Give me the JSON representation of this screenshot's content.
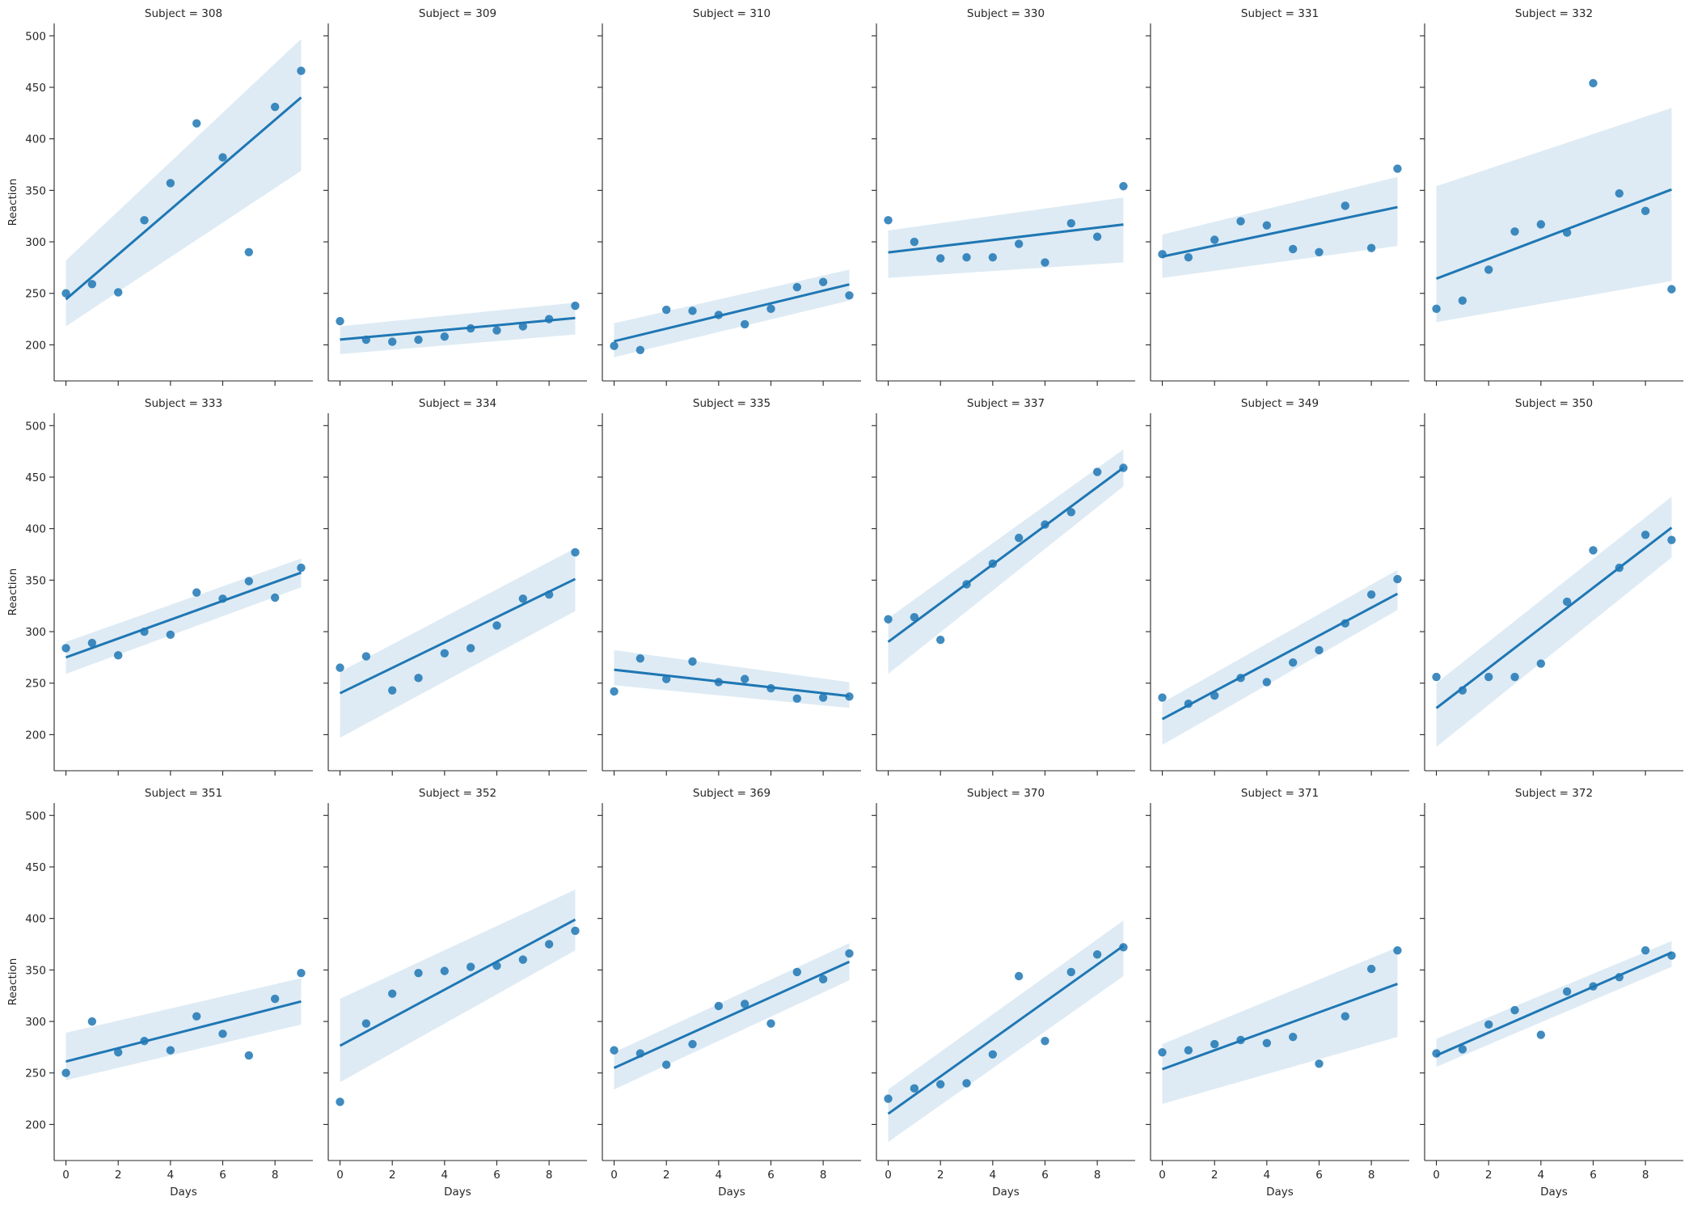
{
  "chart_data": {
    "type": "scatter",
    "facet_title_prefix": "Subject = ",
    "xlabel": "Days",
    "ylabel": "Reaction",
    "xlim": [
      -0.45,
      9.45
    ],
    "ylim": [
      165,
      512
    ],
    "xticks": [
      0,
      2,
      4,
      6,
      8
    ],
    "yticks": [
      200,
      250,
      300,
      350,
      400,
      450,
      500
    ],
    "grid": false,
    "legend": "none",
    "colors": {
      "points": "#1f77b4",
      "line": "#1f77b4",
      "band": "#1f77b4"
    },
    "x": [
      0,
      1,
      2,
      3,
      4,
      5,
      6,
      7,
      8,
      9
    ],
    "panels": [
      {
        "subject": "308",
        "y": [
          250,
          259,
          251,
          321,
          357,
          415,
          382,
          290,
          431,
          466
        ],
        "fit": [
          244.2,
          440.2
        ],
        "ci": [
          [
            218,
            282
          ],
          [
            369,
            497
          ]
        ]
      },
      {
        "subject": "309",
        "y": [
          223,
          205,
          203,
          205,
          208,
          216,
          214,
          218,
          225,
          238
        ],
        "fit": [
          205.1,
          226.0
        ],
        "ci": [
          [
            191,
            218
          ],
          [
            210,
            241
          ]
        ]
      },
      {
        "subject": "310",
        "y": [
          199,
          195,
          234,
          233,
          229,
          220,
          235,
          256,
          261,
          248
        ],
        "fit": [
          203.5,
          258.7
        ],
        "ci": [
          [
            188,
            221
          ],
          [
            243,
            273
          ]
        ]
      },
      {
        "subject": "330",
        "y": [
          321,
          300,
          284,
          285,
          285,
          298,
          280,
          318,
          305,
          354
        ],
        "fit": [
          289.7,
          316.8
        ],
        "ci": [
          [
            265,
            311
          ],
          [
            280,
            343
          ]
        ]
      },
      {
        "subject": "331",
        "y": [
          288,
          285,
          302,
          320,
          316,
          293,
          290,
          335,
          294,
          371
        ],
        "fit": [
          285.7,
          333.7
        ],
        "ci": [
          [
            265,
            307
          ],
          [
            296,
            363
          ]
        ]
      },
      {
        "subject": "332",
        "y": [
          235,
          243,
          273,
          310,
          317,
          309,
          454,
          347,
          330,
          254
        ],
        "fit": [
          264.3,
          350.8
        ],
        "ci": [
          [
            222,
            354
          ],
          [
            262,
            430
          ]
        ]
      },
      {
        "subject": "333",
        "y": [
          284,
          289,
          277,
          300,
          297,
          338,
          332,
          349,
          333,
          362
        ],
        "fit": [
          275.0,
          357.3
        ],
        "ci": [
          [
            259,
            290
          ],
          [
            343,
            371
          ]
        ]
      },
      {
        "subject": "334",
        "y": [
          265,
          276,
          243,
          255,
          279,
          284,
          306,
          332,
          336,
          377
        ],
        "fit": [
          240.2,
          351.1
        ],
        "ci": [
          [
            197,
            261
          ],
          [
            320,
            381
          ]
        ]
      },
      {
        "subject": "335",
        "y": [
          242,
          274,
          254,
          271,
          251,
          254,
          245,
          235,
          236,
          237
        ],
        "fit": [
          263.0,
          237.4
        ],
        "ci": [
          [
            248,
            282
          ],
          [
            226,
            251
          ]
        ]
      },
      {
        "subject": "337",
        "y": [
          312,
          314,
          292,
          346,
          366,
          391,
          404,
          416,
          455,
          459
        ],
        "fit": [
          290.1,
          459.1
        ],
        "ci": [
          [
            259,
            313
          ],
          [
            441,
            477
          ]
        ]
      },
      {
        "subject": "349",
        "y": [
          236,
          230,
          238,
          255,
          251,
          270,
          282,
          308,
          336,
          351
        ],
        "fit": [
          215.1,
          336.8
        ],
        "ci": [
          [
            190,
            231
          ],
          [
            321,
            360
          ]
        ]
      },
      {
        "subject": "350",
        "y": [
          256,
          243,
          256,
          256,
          269,
          329,
          379,
          362,
          394,
          389
        ],
        "fit": [
          225.8,
          401.0
        ],
        "ci": [
          [
            188,
            250
          ],
          [
            372,
            431
          ]
        ]
      },
      {
        "subject": "351",
        "y": [
          250,
          300,
          270,
          281,
          272,
          305,
          288,
          267,
          322,
          347
        ],
        "fit": [
          261.1,
          319.4
        ],
        "ci": [
          [
            243,
            289
          ],
          [
            297,
            342
          ]
        ]
      },
      {
        "subject": "352",
        "y": [
          222,
          298,
          327,
          347,
          349,
          353,
          354,
          360,
          375,
          388
        ],
        "fit": [
          276.4,
          398.9
        ],
        "ci": [
          [
            241,
            322
          ],
          [
            369,
            428
          ]
        ]
      },
      {
        "subject": "369",
        "y": [
          272,
          269,
          258,
          278,
          315,
          317,
          298,
          348,
          341,
          366
        ],
        "fit": [
          254.9,
          357.9
        ],
        "ci": [
          [
            234,
            270
          ],
          [
            340,
            376
          ]
        ]
      },
      {
        "subject": "370",
        "y": [
          225,
          235,
          239,
          240,
          268,
          344,
          281,
          348,
          365,
          372
        ],
        "fit": [
          210.4,
          373.4
        ],
        "ci": [
          [
            183,
            234
          ],
          [
            344,
            398
          ]
        ]
      },
      {
        "subject": "371",
        "y": [
          270,
          272,
          278,
          282,
          279,
          285,
          259,
          305,
          351,
          369
        ],
        "fit": [
          253.6,
          336.5
        ],
        "ci": [
          [
            220,
            278
          ],
          [
            285,
            372
          ]
        ]
      },
      {
        "subject": "372",
        "y": [
          269,
          273,
          297,
          311,
          287,
          329,
          334,
          343,
          369,
          364
        ],
        "fit": [
          267.0,
          366.9
        ],
        "ci": [
          [
            256,
            283
          ],
          [
            353,
            378
          ]
        ]
      }
    ]
  }
}
